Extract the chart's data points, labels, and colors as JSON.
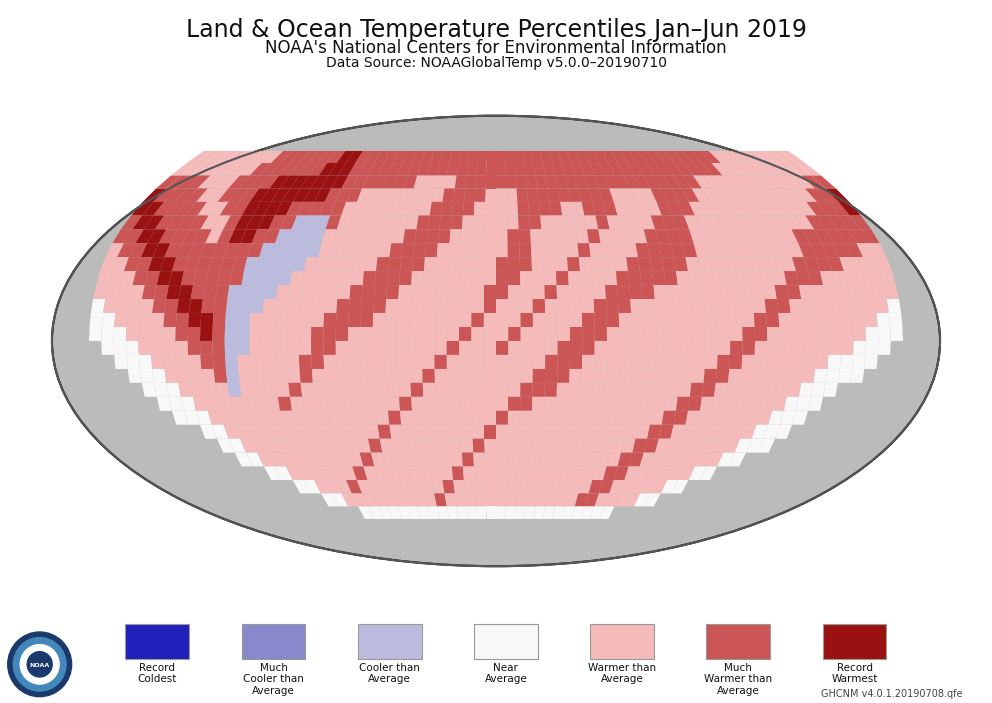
{
  "title_line1": "Land & Ocean Temperature Percentiles Jan–Jun 2019",
  "title_line2": "NOAA's National Centers for Environmental Information",
  "title_line3": "Data Source: NOAAGlobalTemp v5.0.0–20190710",
  "background_color": "#ffffff",
  "globe_background": "#bbbbbb",
  "legend_items": [
    {
      "label": "Record\nColdest",
      "color": "#2020bb"
    },
    {
      "label": "Much\nCooler than\nAverage",
      "color": "#8888cc"
    },
    {
      "label": "Cooler than\nAverage",
      "color": "#bbbbdd"
    },
    {
      "label": "Near\nAverage",
      "color": "#f8f8f8"
    },
    {
      "label": "Warmer than\nAverage",
      "color": "#f5bbbb"
    },
    {
      "label": "Much\nWarmer than\nAverage",
      "color": "#cc5555"
    },
    {
      "label": "Record\nWarmest",
      "color": "#991111"
    }
  ],
  "footer_text": "GHCNM v4.0.1.20190708.qfe",
  "title_fontsize": 17,
  "subtitle_fontsize": 12,
  "datasource_fontsize": 10,
  "temp_grid": [
    [
      5,
      5,
      5,
      5,
      5,
      5,
      5,
      5,
      5,
      6,
      6,
      6,
      6,
      6,
      6,
      6,
      7,
      7,
      6,
      6,
      6,
      6,
      6,
      6,
      6,
      6,
      6,
      6,
      6,
      6,
      6,
      6,
      6,
      6,
      6,
      6,
      6,
      6,
      6,
      6,
      6,
      6,
      6,
      6,
      6,
      6,
      6,
      6,
      6,
      6,
      6,
      6,
      6,
      6,
      6,
      6,
      6,
      5,
      5,
      5,
      5,
      5,
      5,
      5,
      5,
      5
    ],
    [
      5,
      5,
      5,
      5,
      5,
      5,
      5,
      5,
      6,
      6,
      6,
      6,
      6,
      6,
      6,
      7,
      7,
      7,
      6,
      6,
      6,
      6,
      6,
      6,
      6,
      6,
      6,
      6,
      6,
      6,
      6,
      6,
      6,
      6,
      6,
      6,
      6,
      6,
      6,
      6,
      6,
      6,
      6,
      6,
      6,
      6,
      6,
      6,
      6,
      6,
      6,
      6,
      6,
      6,
      6,
      6,
      5,
      5,
      5,
      5,
      5,
      5,
      5,
      5,
      5,
      5
    ],
    [
      6,
      6,
      6,
      6,
      5,
      5,
      5,
      6,
      6,
      6,
      6,
      7,
      7,
      7,
      7,
      7,
      7,
      7,
      6,
      6,
      6,
      6,
      6,
      6,
      6,
      5,
      5,
      5,
      5,
      6,
      6,
      6,
      6,
      6,
      6,
      6,
      6,
      6,
      6,
      6,
      6,
      6,
      6,
      6,
      6,
      6,
      6,
      6,
      6,
      6,
      6,
      6,
      6,
      5,
      5,
      5,
      5,
      5,
      5,
      5,
      5,
      5,
      5,
      5,
      6,
      6
    ],
    [
      7,
      6,
      6,
      6,
      6,
      5,
      5,
      6,
      6,
      6,
      7,
      7,
      7,
      7,
      7,
      7,
      7,
      6,
      6,
      6,
      5,
      5,
      5,
      5,
      5,
      5,
      5,
      5,
      6,
      6,
      6,
      6,
      5,
      5,
      5,
      6,
      6,
      6,
      6,
      6,
      6,
      6,
      6,
      6,
      5,
      5,
      5,
      5,
      6,
      6,
      6,
      6,
      5,
      5,
      5,
      5,
      5,
      5,
      5,
      5,
      5,
      5,
      5,
      6,
      6,
      7
    ],
    [
      7,
      7,
      6,
      6,
      6,
      6,
      5,
      5,
      6,
      6,
      7,
      7,
      7,
      7,
      6,
      6,
      6,
      6,
      6,
      5,
      5,
      5,
      5,
      5,
      5,
      5,
      5,
      6,
      6,
      6,
      6,
      5,
      5,
      5,
      5,
      6,
      6,
      6,
      6,
      5,
      5,
      6,
      6,
      6,
      5,
      5,
      5,
      5,
      6,
      6,
      6,
      5,
      5,
      5,
      5,
      5,
      5,
      5,
      5,
      5,
      5,
      5,
      6,
      6,
      6,
      7
    ],
    [
      6,
      7,
      7,
      6,
      6,
      6,
      6,
      5,
      5,
      6,
      7,
      7,
      7,
      6,
      6,
      3,
      3,
      3,
      6,
      5,
      5,
      5,
      5,
      5,
      5,
      5,
      6,
      6,
      6,
      6,
      5,
      5,
      5,
      5,
      5,
      6,
      6,
      5,
      5,
      5,
      5,
      5,
      6,
      5,
      5,
      5,
      5,
      6,
      6,
      6,
      5,
      5,
      5,
      5,
      5,
      5,
      5,
      5,
      5,
      5,
      5,
      6,
      6,
      6,
      6,
      6
    ],
    [
      6,
      6,
      7,
      7,
      6,
      6,
      6,
      6,
      5,
      6,
      7,
      7,
      6,
      6,
      3,
      3,
      3,
      3,
      5,
      5,
      5,
      5,
      5,
      5,
      5,
      6,
      6,
      6,
      6,
      5,
      5,
      5,
      5,
      5,
      6,
      6,
      5,
      5,
      5,
      5,
      5,
      6,
      5,
      5,
      5,
      5,
      6,
      6,
      6,
      6,
      5,
      5,
      5,
      5,
      5,
      5,
      5,
      5,
      5,
      6,
      6,
      6,
      6,
      6,
      6,
      6
    ],
    [
      5,
      6,
      6,
      7,
      7,
      6,
      6,
      6,
      6,
      6,
      6,
      6,
      6,
      3,
      3,
      3,
      3,
      3,
      5,
      5,
      5,
      5,
      5,
      5,
      6,
      6,
      6,
      6,
      5,
      5,
      5,
      5,
      5,
      5,
      6,
      6,
      5,
      5,
      5,
      5,
      6,
      5,
      5,
      5,
      5,
      6,
      6,
      6,
      6,
      6,
      5,
      5,
      5,
      5,
      5,
      5,
      5,
      5,
      5,
      6,
      6,
      6,
      6,
      6,
      5,
      5
    ],
    [
      5,
      5,
      6,
      6,
      7,
      7,
      6,
      6,
      6,
      6,
      6,
      6,
      3,
      3,
      3,
      3,
      3,
      5,
      5,
      5,
      5,
      5,
      5,
      6,
      6,
      6,
      6,
      5,
      5,
      5,
      5,
      5,
      5,
      6,
      6,
      6,
      5,
      5,
      5,
      6,
      5,
      5,
      5,
      5,
      6,
      6,
      6,
      6,
      6,
      5,
      5,
      5,
      5,
      5,
      5,
      5,
      5,
      5,
      6,
      6,
      6,
      6,
      5,
      5,
      5,
      5
    ],
    [
      5,
      5,
      5,
      6,
      6,
      7,
      7,
      6,
      6,
      6,
      6,
      6,
      3,
      3,
      3,
      3,
      5,
      5,
      5,
      5,
      5,
      5,
      6,
      6,
      6,
      6,
      5,
      5,
      5,
      5,
      5,
      5,
      5,
      6,
      6,
      5,
      5,
      5,
      6,
      5,
      5,
      5,
      5,
      6,
      6,
      6,
      6,
      6,
      5,
      5,
      5,
      5,
      5,
      5,
      5,
      5,
      5,
      6,
      6,
      6,
      5,
      5,
      5,
      5,
      5,
      5
    ],
    [
      5,
      5,
      5,
      5,
      6,
      6,
      7,
      7,
      6,
      6,
      6,
      3,
      3,
      3,
      3,
      5,
      5,
      5,
      5,
      5,
      5,
      6,
      6,
      6,
      6,
      5,
      5,
      5,
      5,
      5,
      5,
      5,
      6,
      6,
      5,
      5,
      5,
      6,
      5,
      5,
      5,
      5,
      6,
      6,
      6,
      6,
      5,
      5,
      5,
      5,
      5,
      5,
      5,
      5,
      5,
      5,
      6,
      6,
      5,
      5,
      5,
      5,
      5,
      5,
      5,
      5
    ],
    [
      4,
      5,
      5,
      5,
      5,
      6,
      6,
      7,
      7,
      6,
      6,
      3,
      3,
      3,
      5,
      5,
      5,
      5,
      5,
      5,
      6,
      6,
      6,
      6,
      5,
      5,
      5,
      5,
      5,
      5,
      5,
      5,
      6,
      5,
      5,
      5,
      6,
      5,
      5,
      5,
      5,
      6,
      6,
      6,
      5,
      5,
      5,
      5,
      5,
      5,
      5,
      5,
      5,
      5,
      5,
      6,
      6,
      5,
      5,
      5,
      5,
      5,
      5,
      5,
      5,
      4
    ],
    [
      4,
      4,
      5,
      5,
      5,
      5,
      6,
      6,
      7,
      7,
      6,
      3,
      3,
      5,
      5,
      5,
      5,
      5,
      5,
      6,
      6,
      6,
      6,
      5,
      5,
      5,
      5,
      5,
      5,
      5,
      5,
      6,
      5,
      5,
      5,
      6,
      5,
      5,
      5,
      5,
      6,
      6,
      6,
      5,
      5,
      5,
      5,
      5,
      5,
      5,
      5,
      5,
      5,
      5,
      6,
      6,
      5,
      5,
      5,
      5,
      5,
      5,
      5,
      5,
      4,
      4
    ],
    [
      4,
      4,
      4,
      5,
      5,
      5,
      5,
      6,
      6,
      7,
      6,
      3,
      3,
      5,
      5,
      5,
      5,
      5,
      6,
      6,
      6,
      5,
      5,
      5,
      5,
      5,
      5,
      5,
      5,
      5,
      6,
      5,
      5,
      5,
      6,
      5,
      5,
      5,
      5,
      6,
      6,
      6,
      5,
      5,
      5,
      5,
      5,
      5,
      5,
      5,
      5,
      5,
      5,
      6,
      6,
      5,
      5,
      5,
      5,
      5,
      5,
      5,
      5,
      4,
      4,
      4
    ],
    [
      0,
      4,
      4,
      4,
      5,
      5,
      5,
      5,
      6,
      6,
      6,
      3,
      3,
      5,
      5,
      5,
      5,
      5,
      6,
      6,
      5,
      5,
      5,
      5,
      5,
      5,
      5,
      5,
      5,
      6,
      5,
      5,
      5,
      6,
      5,
      5,
      5,
      5,
      6,
      6,
      6,
      5,
      5,
      5,
      5,
      5,
      5,
      5,
      5,
      5,
      5,
      5,
      6,
      6,
      5,
      5,
      5,
      5,
      5,
      5,
      5,
      5,
      4,
      4,
      4,
      0
    ],
    [
      0,
      0,
      4,
      4,
      4,
      5,
      5,
      5,
      5,
      6,
      6,
      3,
      5,
      5,
      5,
      5,
      5,
      6,
      6,
      5,
      5,
      5,
      5,
      5,
      5,
      5,
      5,
      5,
      6,
      5,
      5,
      5,
      5,
      5,
      5,
      5,
      5,
      6,
      6,
      6,
      5,
      5,
      5,
      5,
      5,
      5,
      5,
      5,
      5,
      5,
      5,
      6,
      6,
      5,
      5,
      5,
      5,
      5,
      5,
      5,
      4,
      4,
      4,
      4,
      0,
      0
    ],
    [
      0,
      0,
      0,
      4,
      4,
      4,
      5,
      5,
      5,
      5,
      6,
      3,
      5,
      5,
      5,
      5,
      5,
      6,
      5,
      5,
      5,
      5,
      5,
      5,
      5,
      5,
      5,
      6,
      5,
      5,
      5,
      5,
      5,
      5,
      5,
      5,
      6,
      6,
      6,
      5,
      5,
      5,
      5,
      5,
      5,
      5,
      5,
      5,
      5,
      5,
      6,
      6,
      5,
      5,
      5,
      5,
      5,
      5,
      5,
      4,
      4,
      4,
      4,
      0,
      0,
      0
    ],
    [
      0,
      0,
      0,
      0,
      4,
      4,
      4,
      5,
      5,
      5,
      5,
      3,
      5,
      5,
      5,
      5,
      6,
      5,
      5,
      5,
      5,
      5,
      5,
      5,
      5,
      5,
      6,
      5,
      5,
      5,
      5,
      5,
      5,
      5,
      5,
      6,
      6,
      6,
      5,
      5,
      5,
      5,
      5,
      5,
      5,
      5,
      5,
      5,
      5,
      6,
      6,
      5,
      5,
      5,
      5,
      5,
      5,
      5,
      4,
      4,
      4,
      0,
      0,
      0,
      0,
      0
    ],
    [
      0,
      0,
      0,
      0,
      0,
      4,
      4,
      4,
      5,
      5,
      5,
      5,
      5,
      5,
      5,
      6,
      5,
      5,
      5,
      5,
      5,
      5,
      5,
      5,
      5,
      6,
      5,
      5,
      5,
      5,
      5,
      5,
      5,
      5,
      6,
      6,
      5,
      5,
      5,
      5,
      5,
      5,
      5,
      5,
      5,
      5,
      5,
      5,
      6,
      6,
      5,
      5,
      5,
      5,
      5,
      5,
      5,
      4,
      4,
      4,
      0,
      0,
      0,
      0,
      0,
      0
    ],
    [
      0,
      0,
      0,
      0,
      0,
      0,
      4,
      4,
      4,
      5,
      5,
      5,
      5,
      5,
      5,
      5,
      5,
      5,
      5,
      5,
      5,
      5,
      5,
      5,
      6,
      5,
      5,
      5,
      5,
      5,
      5,
      5,
      5,
      6,
      5,
      5,
      5,
      5,
      5,
      5,
      5,
      5,
      5,
      5,
      5,
      5,
      5,
      6,
      6,
      5,
      5,
      5,
      5,
      5,
      5,
      5,
      4,
      4,
      4,
      0,
      0,
      0,
      0,
      0,
      0,
      0
    ],
    [
      0,
      0,
      0,
      0,
      0,
      0,
      0,
      0,
      4,
      4,
      5,
      5,
      5,
      5,
      5,
      5,
      5,
      5,
      5,
      5,
      5,
      5,
      5,
      6,
      5,
      5,
      5,
      5,
      5,
      5,
      5,
      5,
      6,
      5,
      5,
      5,
      5,
      5,
      5,
      5,
      5,
      5,
      5,
      5,
      5,
      5,
      6,
      6,
      5,
      5,
      5,
      5,
      5,
      5,
      5,
      4,
      4,
      4,
      0,
      0,
      0,
      0,
      0,
      0,
      0,
      0
    ],
    [
      0,
      0,
      0,
      0,
      0,
      0,
      0,
      0,
      0,
      4,
      4,
      5,
      5,
      5,
      5,
      5,
      5,
      5,
      5,
      5,
      5,
      5,
      6,
      5,
      5,
      5,
      5,
      5,
      5,
      5,
      5,
      6,
      5,
      5,
      5,
      5,
      5,
      5,
      5,
      5,
      5,
      5,
      5,
      5,
      5,
      6,
      6,
      5,
      5,
      5,
      5,
      5,
      5,
      5,
      4,
      4,
      4,
      0,
      0,
      0,
      0,
      0,
      0,
      0,
      0,
      0
    ],
    [
      0,
      0,
      0,
      0,
      0,
      0,
      0,
      0,
      0,
      0,
      4,
      4,
      5,
      5,
      5,
      5,
      5,
      5,
      5,
      5,
      5,
      6,
      5,
      5,
      5,
      5,
      5,
      5,
      5,
      5,
      6,
      5,
      5,
      5,
      5,
      5,
      5,
      5,
      5,
      5,
      5,
      5,
      5,
      5,
      6,
      6,
      5,
      5,
      5,
      5,
      5,
      5,
      5,
      4,
      4,
      0,
      0,
      0,
      0,
      0,
      0,
      0,
      0,
      0,
      0,
      0
    ],
    [
      0,
      0,
      0,
      0,
      0,
      0,
      0,
      0,
      0,
      0,
      0,
      0,
      4,
      4,
      5,
      5,
      5,
      5,
      5,
      5,
      6,
      5,
      5,
      5,
      5,
      5,
      5,
      5,
      5,
      6,
      5,
      5,
      5,
      5,
      5,
      5,
      5,
      5,
      5,
      5,
      5,
      5,
      5,
      6,
      6,
      5,
      5,
      5,
      5,
      5,
      5,
      4,
      4,
      0,
      0,
      0,
      0,
      0,
      0,
      0,
      0,
      0,
      0,
      0,
      0,
      0
    ],
    [
      0,
      0,
      0,
      0,
      0,
      0,
      0,
      0,
      0,
      0,
      0,
      0,
      0,
      0,
      4,
      4,
      5,
      5,
      5,
      6,
      5,
      5,
      5,
      5,
      5,
      5,
      5,
      5,
      6,
      5,
      5,
      5,
      5,
      5,
      5,
      5,
      5,
      5,
      5,
      5,
      5,
      5,
      6,
      6,
      5,
      5,
      5,
      5,
      5,
      4,
      4,
      0,
      0,
      0,
      0,
      0,
      0,
      0,
      0,
      0,
      0,
      0,
      0,
      0,
      0,
      0
    ],
    [
      0,
      0,
      0,
      0,
      0,
      0,
      0,
      0,
      0,
      0,
      0,
      0,
      0,
      0,
      0,
      0,
      4,
      4,
      5,
      5,
      5,
      5,
      5,
      5,
      5,
      5,
      5,
      6,
      5,
      5,
      5,
      5,
      5,
      5,
      5,
      5,
      5,
      5,
      5,
      5,
      5,
      6,
      6,
      5,
      5,
      5,
      5,
      4,
      4,
      0,
      0,
      0,
      0,
      0,
      0,
      0,
      0,
      0,
      0,
      0,
      0,
      0,
      0,
      0,
      0,
      0
    ],
    [
      0,
      0,
      0,
      0,
      0,
      0,
      0,
      0,
      0,
      0,
      0,
      0,
      0,
      0,
      0,
      0,
      0,
      0,
      0,
      4,
      4,
      4,
      4,
      4,
      4,
      4,
      4,
      4,
      4,
      4,
      4,
      4,
      4,
      4,
      4,
      4,
      4,
      4,
      4,
      4,
      4,
      4,
      4,
      4,
      4,
      0,
      0,
      0,
      0,
      0,
      0,
      0,
      0,
      0,
      0,
      0,
      0,
      0,
      0,
      0,
      0,
      0,
      0,
      0,
      0,
      0
    ]
  ]
}
